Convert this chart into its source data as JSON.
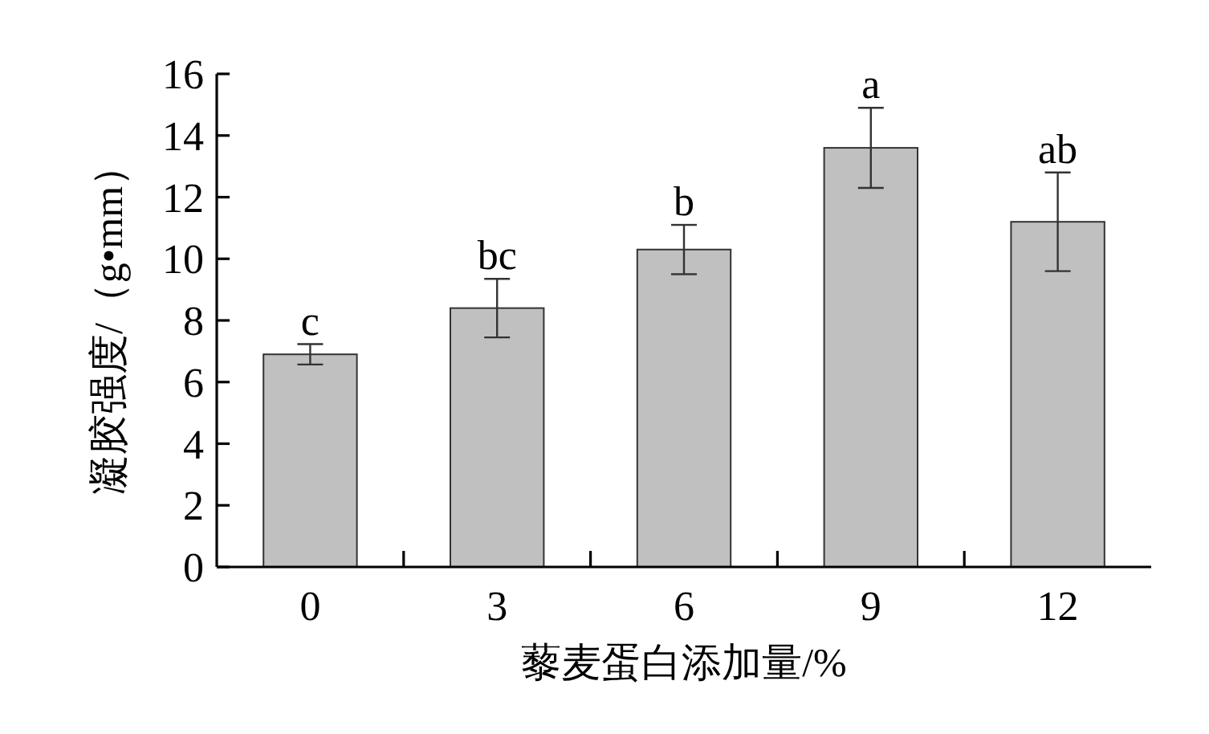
{
  "chart_data": {
    "type": "bar",
    "xlabel": "藜麦蛋白添加量/%",
    "ylabel": "凝胶强度/（g•mm）",
    "categories": [
      "0",
      "3",
      "6",
      "9",
      "12"
    ],
    "values": [
      6.9,
      8.4,
      10.3,
      13.6,
      11.2
    ],
    "errors": [
      0.33,
      0.95,
      0.8,
      1.3,
      1.6
    ],
    "color": "#c0c0c0",
    "ylim": [
      0,
      16
    ],
    "yticks": [
      0,
      2,
      4,
      6,
      8,
      10,
      12,
      14,
      16
    ],
    "grid": false,
    "annotations": [
      {
        "text": "c",
        "x": "0",
        "y": 7.23
      },
      {
        "text": "bc",
        "x": "3",
        "y": 9.35
      },
      {
        "text": "b",
        "x": "6",
        "y": 11.1
      },
      {
        "text": "a",
        "x": "9",
        "y": 14.9
      },
      {
        "text": "ab",
        "x": "12",
        "y": 12.8
      }
    ]
  }
}
